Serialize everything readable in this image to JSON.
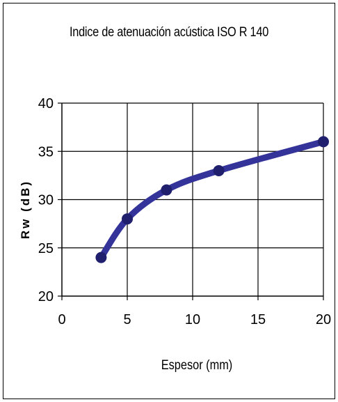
{
  "chart_data": {
    "type": "line",
    "title": "Indice de atenuación acústica ISO R 140",
    "xlabel": "Espesor (mm)",
    "ylabel": "Rw (dB)",
    "xlim": [
      0,
      20
    ],
    "ylim": [
      20,
      40
    ],
    "x_ticks": [
      "0",
      "5",
      "10",
      "15",
      "20"
    ],
    "y_ticks": [
      "20",
      "25",
      "30",
      "35",
      "40"
    ],
    "grid": true,
    "series": [
      {
        "x": [
          3,
          5,
          8,
          12,
          20
        ],
        "values": [
          24,
          28,
          31,
          33,
          36
        ],
        "color": "#33339a"
      }
    ]
  }
}
